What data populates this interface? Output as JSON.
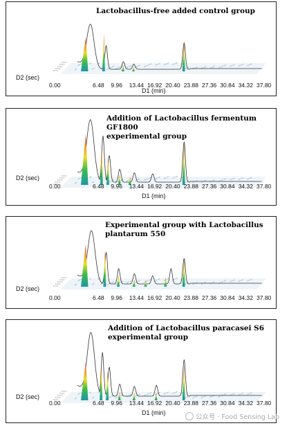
{
  "watermark": "公众号 · Food Sensing Lab",
  "chart_data": [
    {
      "type": "line",
      "title": "Lactobacillus-free added control group",
      "xlabel": "D1 (min)",
      "ylabel": "D2 (sec)",
      "x_ticks": [
        "0.00",
        "6.48",
        "9.96",
        "13.44",
        "16.92",
        "20.40",
        "23.88",
        "27.36",
        "30.84",
        "34.32",
        "37.80"
      ],
      "peaks": [
        {
          "x": 4.1,
          "height": 0.78
        },
        {
          "x": 7.6,
          "height": 0.86
        },
        {
          "x": 11.3,
          "height": 0.14
        },
        {
          "x": 13.3,
          "height": 0.1
        },
        {
          "x": 22.9,
          "height": 0.72
        }
      ],
      "trace_peaks": [
        {
          "x": 5.0,
          "height": 1.0
        },
        {
          "x": 8.0,
          "height": 0.55
        },
        {
          "x": 11.3,
          "height": 0.18
        },
        {
          "x": 13.3,
          "height": 0.12
        },
        {
          "x": 22.9,
          "height": 0.62
        }
      ]
    },
    {
      "type": "line",
      "title": "Addition of Lactobacillus fermentum GF1800\nexperimental group",
      "xlabel": "D1 (min)",
      "ylabel": "D2 (sec)",
      "x_ticks": [
        "0.00",
        "6.48",
        "9.96",
        "13.44",
        "16.92",
        "20.40",
        "23.88",
        "27.36",
        "30.84",
        "34.32",
        "37.80"
      ],
      "peaks": [
        {
          "x": 4.1,
          "height": 0.85
        },
        {
          "x": 7.2,
          "height": 0.62
        },
        {
          "x": 8.4,
          "height": 0.45
        },
        {
          "x": 10.6,
          "height": 0.18
        },
        {
          "x": 12.6,
          "height": 0.14
        },
        {
          "x": 22.9,
          "height": 0.72
        }
      ],
      "trace_peaks": [
        {
          "x": 5.0,
          "height": 1.0
        },
        {
          "x": 7.4,
          "height": 0.78
        },
        {
          "x": 8.6,
          "height": 0.45
        },
        {
          "x": 10.6,
          "height": 0.22
        },
        {
          "x": 13.4,
          "height": 0.16
        },
        {
          "x": 16.9,
          "height": 0.14
        },
        {
          "x": 22.9,
          "height": 0.68
        }
      ]
    },
    {
      "type": "line",
      "title": "Experimental group with Lactobacillus\nplantarum 550",
      "xlabel": "",
      "ylabel": "D2 (sec)",
      "x_ticks": [
        "0.00",
        "6.48",
        "9.96",
        "13.44",
        "16.92",
        "20.40",
        "23.88",
        "27.36",
        "30.84",
        "34.32",
        "37.80"
      ],
      "peaks": [
        {
          "x": 4.1,
          "height": 0.82
        },
        {
          "x": 7.8,
          "height": 0.72
        },
        {
          "x": 10.4,
          "height": 0.22
        },
        {
          "x": 13.4,
          "height": 0.14
        },
        {
          "x": 15.6,
          "height": 0.12
        },
        {
          "x": 19.4,
          "height": 0.18
        },
        {
          "x": 22.9,
          "height": 0.55
        }
      ],
      "trace_peaks": [
        {
          "x": 5.2,
          "height": 1.0
        },
        {
          "x": 8.0,
          "height": 0.62
        },
        {
          "x": 10.4,
          "height": 0.3
        },
        {
          "x": 13.4,
          "height": 0.2
        },
        {
          "x": 16.9,
          "height": 0.16
        },
        {
          "x": 20.4,
          "height": 0.3
        },
        {
          "x": 22.9,
          "height": 0.5
        }
      ]
    },
    {
      "type": "line",
      "title": "Addition of Lactobacillus paracasei S6\nexperimental group",
      "xlabel": "D1 (min)",
      "ylabel": "D2 (sec)",
      "x_ticks": [
        "0.00",
        "6.48",
        "9.96",
        "13.44",
        "16.92",
        "20.40",
        "23.88",
        "27.36",
        "30.84",
        "34.32",
        "37.80"
      ],
      "peaks": [
        {
          "x": 4.1,
          "height": 0.62
        },
        {
          "x": 7.1,
          "height": 0.58
        },
        {
          "x": 8.3,
          "height": 0.48
        },
        {
          "x": 10.6,
          "height": 0.14
        },
        {
          "x": 13.4,
          "height": 0.12
        },
        {
          "x": 17.6,
          "height": 0.12
        },
        {
          "x": 22.9,
          "height": 0.58
        }
      ],
      "trace_peaks": [
        {
          "x": 5.1,
          "height": 1.0
        },
        {
          "x": 7.3,
          "height": 0.72
        },
        {
          "x": 8.6,
          "height": 0.48
        },
        {
          "x": 10.6,
          "height": 0.2
        },
        {
          "x": 13.4,
          "height": 0.16
        },
        {
          "x": 17.6,
          "height": 0.18
        },
        {
          "x": 22.9,
          "height": 0.6
        }
      ]
    }
  ]
}
